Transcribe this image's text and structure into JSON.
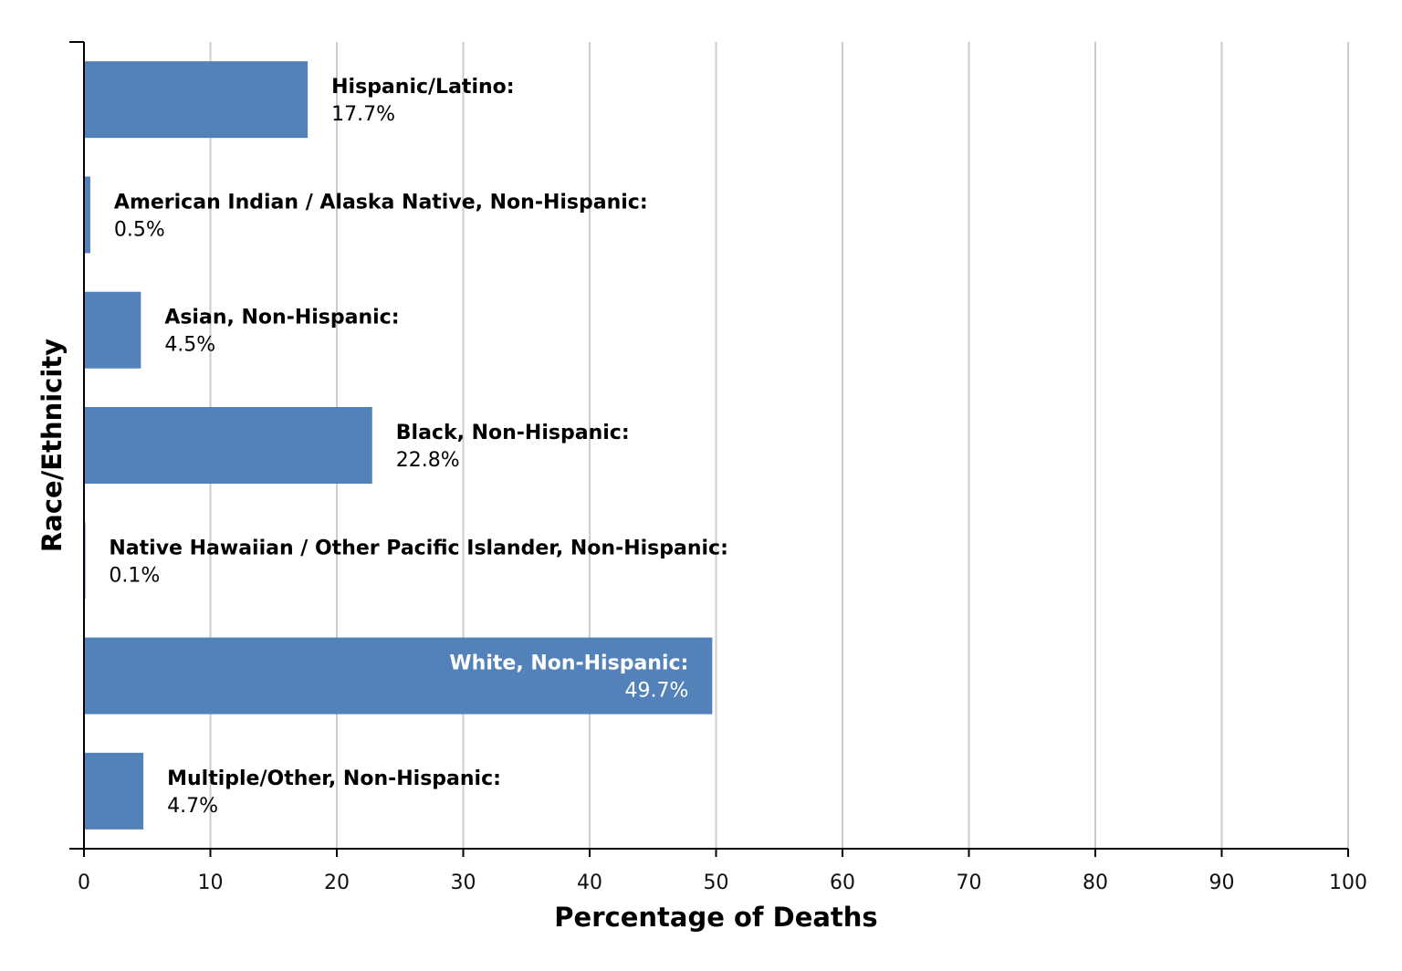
{
  "chart_data": {
    "type": "bar",
    "orientation": "horizontal",
    "xlabel": "Percentage of Deaths",
    "ylabel": "Race/Ethnicity",
    "xlim": [
      0,
      100
    ],
    "x_ticks": [
      "0",
      "10",
      "20",
      "30",
      "40",
      "50",
      "60",
      "70",
      "80",
      "90",
      "100"
    ],
    "grid": "vertical",
    "categories": [
      "Hispanic/Latino:",
      "American Indian / Alaska Native, Non-Hispanic:",
      "Asian, Non-Hispanic:",
      "Black, Non-Hispanic:",
      "Native Hawaiian / Other Pacific Islander, Non-Hispanic:",
      "White, Non-Hispanic:",
      "Multiple/Other, Non-Hispanic:"
    ],
    "values": [
      17.7,
      0.5,
      4.5,
      22.8,
      0.1,
      49.7,
      4.7
    ],
    "value_labels": [
      "17.7%",
      "0.5%",
      "4.5%",
      "22.8%",
      "0.1%",
      "49.7%",
      "4.7%"
    ],
    "bar_color": "#5381b9",
    "grid_color": "#cccccc",
    "axis_color": "#000000"
  }
}
